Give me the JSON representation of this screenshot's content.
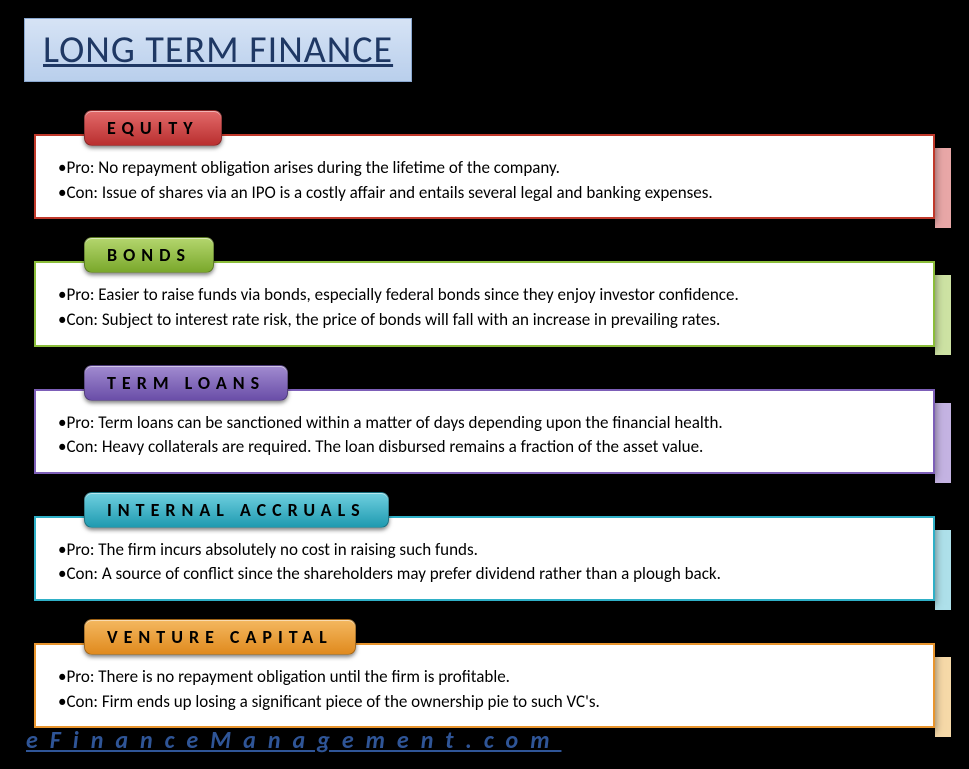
{
  "title": "LONG TERM FINANCE",
  "title_style": {
    "bg_top": "#d6e3f5",
    "bg_bottom": "#b9cfec",
    "border": "#8aa8d0",
    "color": "#1f3864",
    "fontsize": 38
  },
  "sections": [
    {
      "label": "EQUITY",
      "color_top": "#e36a6a",
      "color_bottom": "#b92f2f",
      "border": "#c0392b",
      "strip": "#e8a7a7",
      "pro": "•Pro: No repayment obligation arises during the lifetime of the company.",
      "con": "•Con: Issue of shares via an IPO is a costly affair and entails several legal and banking expenses."
    },
    {
      "label": "BONDS",
      "color_top": "#b4d66e",
      "color_bottom": "#7aa82b",
      "border": "#8bbd3a",
      "strip": "#cde2a3",
      "pro": "•Pro: Easier to raise funds via bonds, especially federal bonds since they enjoy investor confidence.",
      "con": "•Con: Subject to interest rate risk, the price of bonds will fall with an increase in prevailing rates."
    },
    {
      "label": "TERM LOANS",
      "color_top": "#a18bd0",
      "color_bottom": "#6a4ea8",
      "border": "#7d5fb8",
      "strip": "#c4b3e2",
      "pro": "•Pro: Term loans can be sanctioned within a matter of days depending upon the financial health.",
      "con": "•Con: Heavy collaterals are required. The loan disbursed remains a fraction of the asset value."
    },
    {
      "label": "INTERNAL ACCRUALS",
      "color_top": "#6fd0e0",
      "color_bottom": "#1f9ab0",
      "border": "#2fb0c7",
      "strip": "#aee0ea",
      "pro": "•Pro: The firm incurs absolutely no cost in raising such funds.",
      "con": "•Con: A source of conflict since the shareholders may prefer dividend rather than a plough back."
    },
    {
      "label": "VENTURE CAPITAL",
      "color_top": "#f4b860",
      "color_bottom": "#e08a1e",
      "border": "#e8952e",
      "strip": "#f6d9a8",
      "pro": "•Pro: There is no repayment obligation until the firm is profitable.",
      "con": "•Con: Firm ends up losing a significant piece of the ownership pie to such VC's."
    }
  ],
  "footer": "eFinanceManagement.com",
  "footer_color": "#2f5597",
  "content_style": {
    "fontsize": 17,
    "bg": "#ffffff",
    "text_color": "#000000"
  },
  "tab_style": {
    "fontsize": 18,
    "letter_spacing": 6
  }
}
